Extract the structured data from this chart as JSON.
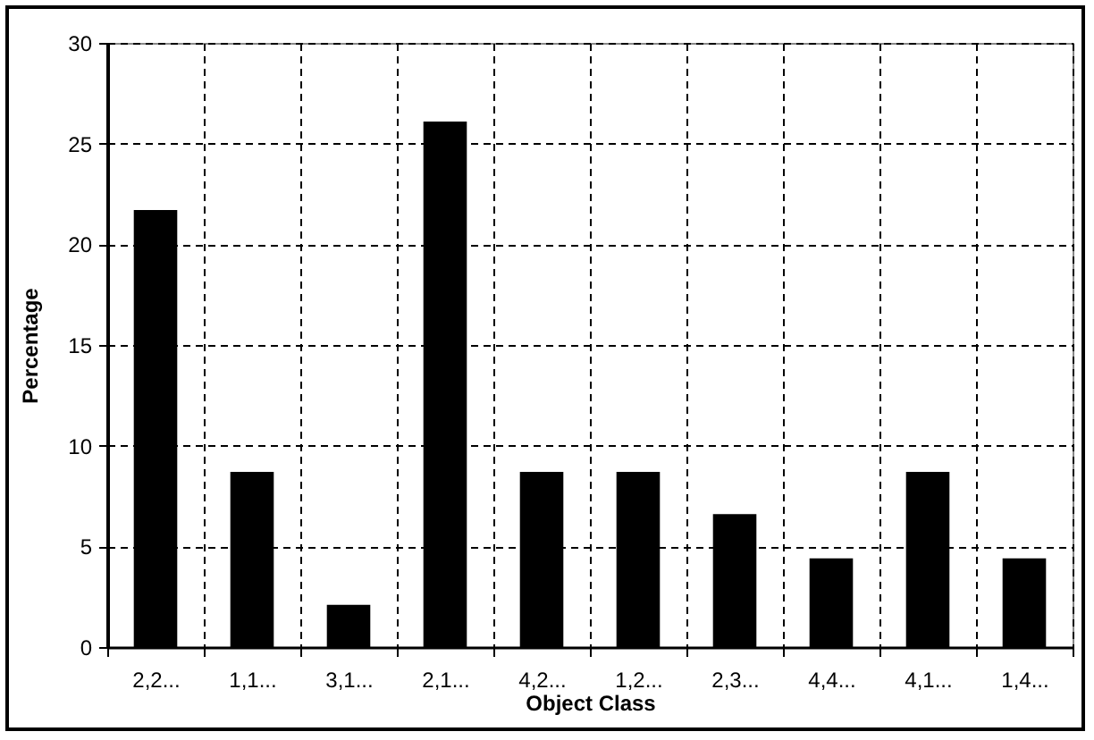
{
  "chart_data": {
    "type": "bar",
    "xlabel": "Object Class",
    "ylabel": "Percentage",
    "categories": [
      "2,2...",
      "1,1...",
      "3,1...",
      "2,1...",
      "4,2...",
      "1,2...",
      "2,3...",
      "4,4...",
      "4,1...",
      "1,4..."
    ],
    "values": [
      21.7,
      8.7,
      2.1,
      26.1,
      8.7,
      8.7,
      6.6,
      4.4,
      8.7,
      4.4
    ],
    "color": "#000000",
    "ylim": [
      0,
      30
    ],
    "yticks": [
      0,
      5,
      10,
      15,
      20,
      25,
      30
    ],
    "grid": true
  }
}
